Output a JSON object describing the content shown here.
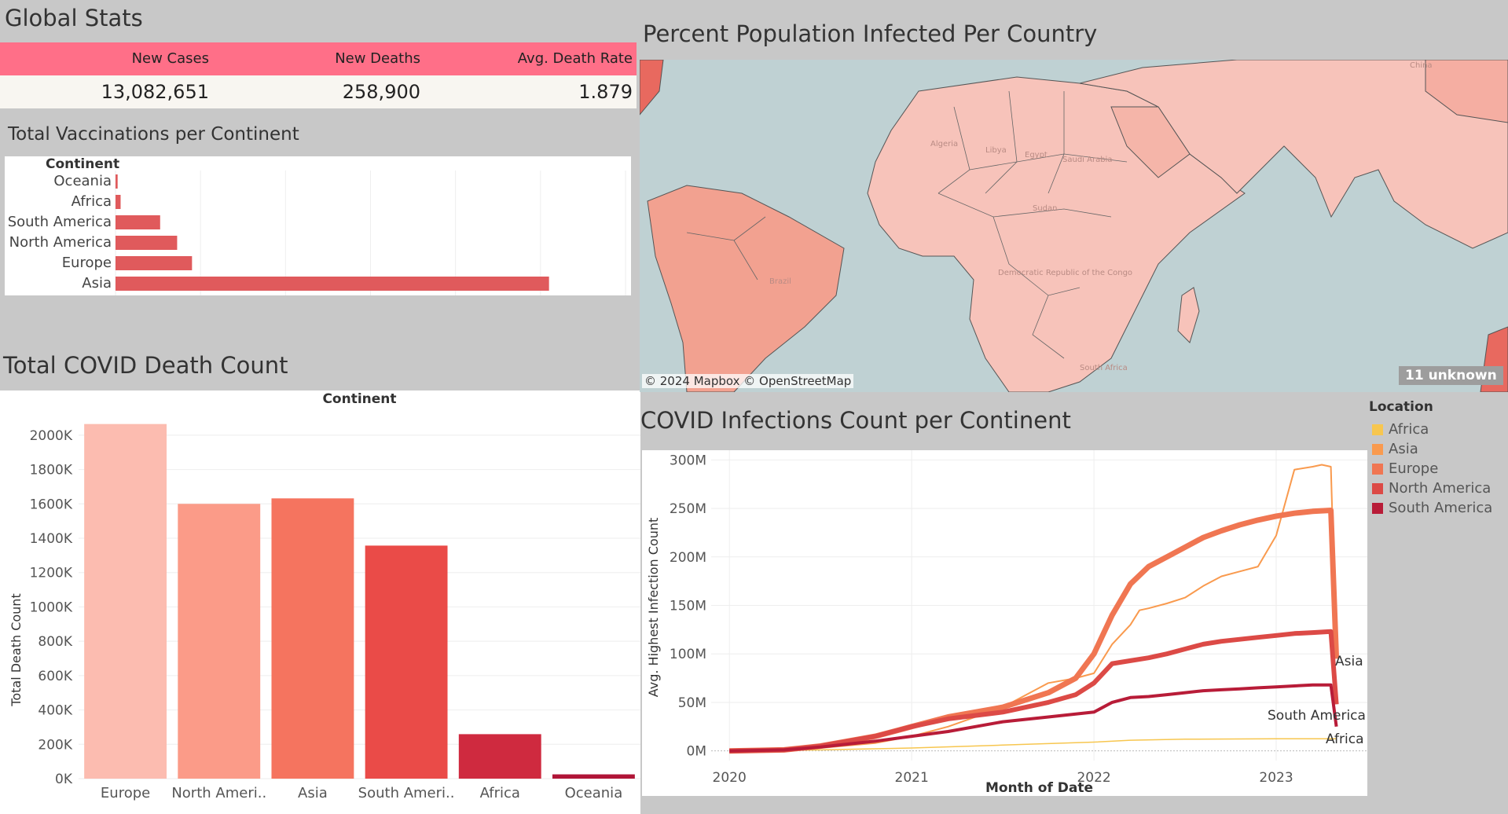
{
  "global_stats": {
    "title": "Global Stats",
    "headers": [
      "New Cases",
      "New Deaths",
      "Avg. Death Rate"
    ],
    "values": [
      "13,082,651",
      "258,900",
      "1.879"
    ],
    "header_color": "#ff6f88"
  },
  "vaccinations": {
    "title": "Total Vaccinations per Continent",
    "column_header": "Continent"
  },
  "death_count": {
    "title": "Total COVID Death Count",
    "header": "Continent"
  },
  "map": {
    "title": "Percent Population Infected Per Country",
    "attribution": "© 2024 Mapbox © OpenStreetMap",
    "unknown_badge": "11 unknown",
    "country_labels": [
      "Algeria",
      "Libya",
      "Egypt",
      "Saudi Arabia",
      "Sudan",
      "Democratic Republic of the Congo",
      "Brazil",
      "South Africa",
      "China"
    ]
  },
  "infections": {
    "title": "COVID Infections Count per Continent",
    "legend_title": "Location",
    "end_labels": [
      "Asia",
      "South America",
      "Africa"
    ]
  },
  "colors": {
    "background": "#c8c8c8",
    "accent": "#ff6f88",
    "vacc_bar": "#e05a5c",
    "map_water": "#bfd1d3",
    "map_land": "#f7c3ba"
  },
  "chart_data": [
    {
      "type": "bar",
      "orientation": "horizontal",
      "title": "Total Vaccinations per Continent",
      "xlabel": "",
      "ylabel": "Continent",
      "categories": [
        "Oceania",
        "Africa",
        "South America",
        "North America",
        "Europe",
        "Asia"
      ],
      "values": [
        0.5,
        1.2,
        10.5,
        14.5,
        18,
        102
      ],
      "grid": true
    },
    {
      "type": "bar",
      "title": "Total COVID Death Count",
      "header": "Continent",
      "xlabel": "",
      "ylabel": "Total Death Count",
      "categories": [
        "Europe",
        "North Ameri..",
        "Asia",
        "South Ameri..",
        "Africa",
        "Oceania"
      ],
      "values": [
        2065000,
        1600000,
        1632000,
        1357000,
        259000,
        25000
      ],
      "colors": [
        "#fcbcb0",
        "#fb9b88",
        "#f5745f",
        "#ea4b48",
        "#cf2a3f",
        "#b01537"
      ],
      "ylim": [
        0,
        2100000
      ],
      "yticks": [
        0,
        200000,
        400000,
        600000,
        800000,
        1000000,
        1200000,
        1400000,
        1600000,
        1800000,
        2000000
      ],
      "ytick_labels": [
        "0K",
        "200K",
        "400K",
        "600K",
        "800K",
        "1000K",
        "1200K",
        "1400K",
        "1600K",
        "1800K",
        "2000K"
      ],
      "grid": true
    },
    {
      "type": "line",
      "title": "COVID Infections Count per Continent",
      "xlabel": "Month of Date",
      "ylabel": "Avg. Highest Infection Count",
      "legend_title": "Location",
      "legend_position": "right",
      "xlim": [
        2019.9,
        2023.5
      ],
      "xticks": [
        2020,
        2021,
        2022,
        2023
      ],
      "ylim": [
        -10,
        310
      ],
      "yticks": [
        0,
        50,
        100,
        150,
        200,
        250,
        300
      ],
      "ytick_labels": [
        "0M",
        "50M",
        "100M",
        "150M",
        "200M",
        "250M",
        "300M"
      ],
      "series": [
        {
          "name": "Africa",
          "color": "#f7c64f",
          "width": 1.5,
          "x": [
            2020.0,
            2020.5,
            2021.0,
            2021.5,
            2022.0,
            2022.2,
            2022.5,
            2023.0,
            2023.33
          ],
          "y": [
            0,
            1,
            3,
            6,
            9,
            11,
            12,
            12.5,
            12.5
          ]
        },
        {
          "name": "Asia",
          "color": "#f99a4e",
          "width": 2,
          "x": [
            2020.0,
            2020.3,
            2020.5,
            2020.8,
            2021.0,
            2021.2,
            2021.5,
            2021.75,
            2021.9,
            2022.0,
            2022.1,
            2022.2,
            2022.25,
            2022.3,
            2022.4,
            2022.5,
            2022.6,
            2022.7,
            2022.8,
            2022.9,
            2023.0,
            2023.1,
            2023.2,
            2023.25,
            2023.3,
            2023.33
          ],
          "y": [
            0,
            1,
            3,
            8,
            15,
            25,
            45,
            70,
            75,
            80,
            110,
            130,
            145,
            147,
            152,
            158,
            170,
            180,
            185,
            190,
            222,
            290,
            293,
            295,
            293,
            100
          ]
        },
        {
          "name": "Europe",
          "color": "#f07652",
          "width": 7,
          "x": [
            2020.0,
            2020.3,
            2020.5,
            2020.8,
            2021.0,
            2021.2,
            2021.5,
            2021.75,
            2021.9,
            2022.0,
            2022.1,
            2022.2,
            2022.3,
            2022.4,
            2022.5,
            2022.6,
            2022.7,
            2022.8,
            2022.9,
            2023.0,
            2023.1,
            2023.2,
            2023.3,
            2023.33
          ],
          "y": [
            0,
            1,
            5,
            15,
            25,
            35,
            45,
            60,
            75,
            100,
            140,
            172,
            190,
            200,
            210,
            220,
            227,
            233,
            238,
            242,
            245,
            247,
            248,
            95
          ]
        },
        {
          "name": "North America",
          "color": "#dc4a46",
          "width": 6,
          "x": [
            2020.0,
            2020.3,
            2020.5,
            2020.8,
            2021.0,
            2021.2,
            2021.5,
            2021.75,
            2021.9,
            2022.0,
            2022.1,
            2022.2,
            2022.3,
            2022.4,
            2022.5,
            2022.6,
            2022.7,
            2022.8,
            2022.9,
            2023.0,
            2023.1,
            2023.2,
            2023.3,
            2023.33
          ],
          "y": [
            0,
            1,
            5,
            15,
            25,
            33,
            40,
            50,
            58,
            70,
            90,
            93,
            96,
            100,
            105,
            110,
            113,
            115,
            117,
            119,
            121,
            122,
            123,
            48
          ]
        },
        {
          "name": "South America",
          "color": "#b81c38",
          "width": 4,
          "x": [
            2020.0,
            2020.3,
            2020.5,
            2020.8,
            2021.0,
            2021.2,
            2021.5,
            2021.75,
            2021.9,
            2022.0,
            2022.1,
            2022.2,
            2022.3,
            2022.4,
            2022.5,
            2022.6,
            2022.7,
            2022.8,
            2022.9,
            2023.0,
            2023.1,
            2023.2,
            2023.3,
            2023.33
          ],
          "y": [
            0,
            1,
            4,
            10,
            15,
            20,
            30,
            35,
            38,
            40,
            50,
            55,
            56,
            58,
            60,
            62,
            63,
            64,
            65,
            66,
            67,
            68,
            68,
            25
          ]
        }
      ]
    },
    {
      "type": "map",
      "title": "Percent Population Infected Per Country"
    }
  ]
}
